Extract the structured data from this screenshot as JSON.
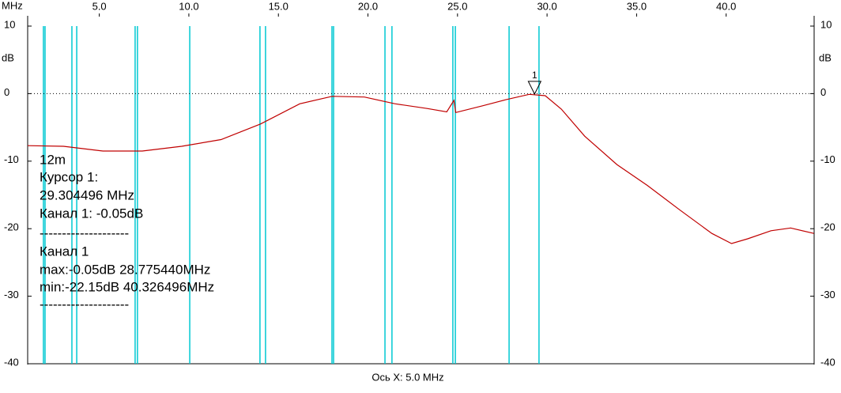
{
  "chart_data": {
    "type": "line",
    "x_unit": "MHz",
    "y_unit": "dB",
    "xlabel": "Ось X: 5.0 MHz",
    "xlim": [
      1,
      45
    ],
    "ylim": [
      -40,
      10
    ],
    "y2lim": [
      -40,
      10
    ],
    "xticks": [
      {
        "value": 5,
        "label": "5.0"
      },
      {
        "value": 10,
        "label": "10.0"
      },
      {
        "value": 15,
        "label": "15.0"
      },
      {
        "value": 20,
        "label": "20.0"
      },
      {
        "value": 25,
        "label": "25.0"
      },
      {
        "value": 30,
        "label": "30.0"
      },
      {
        "value": 35,
        "label": "35.0"
      },
      {
        "value": 40,
        "label": "40.0"
      }
    ],
    "yticks": [
      10,
      0,
      -10,
      -20,
      -30,
      -40
    ],
    "y2ticks": [
      10,
      0,
      -10,
      -20,
      -30,
      -40
    ],
    "color": "#c00000",
    "marker_color": "#00c8d2",
    "markers": [
      1.88,
      1.97,
      3.47,
      3.74,
      7.0,
      7.13,
      10.05,
      13.97,
      14.28,
      17.99,
      18.08,
      20.95,
      21.34,
      24.74,
      24.88,
      27.88,
      29.55
    ],
    "x": [
      1.0,
      3.0,
      5.2,
      7.4,
      9.6,
      11.8,
      14.0,
      16.2,
      18.0,
      19.8,
      21.5,
      23.3,
      24.4,
      24.8,
      24.9,
      26.4,
      27.7,
      29.0,
      29.9,
      30.8,
      32.1,
      33.9,
      35.6,
      37.4,
      39.2,
      40.3,
      41.2,
      42.5,
      43.6,
      44.9
    ],
    "values": [
      -7.7,
      -7.8,
      -8.5,
      -8.5,
      -7.8,
      -6.8,
      -4.5,
      -1.5,
      -0.4,
      -0.5,
      -1.5,
      -2.2,
      -2.7,
      -1.0,
      -2.8,
      -1.8,
      -0.9,
      -0.1,
      -0.3,
      -2.3,
      -6.3,
      -10.5,
      -13.6,
      -17.2,
      -20.7,
      -22.2,
      -21.5,
      -20.3,
      -19.9,
      -20.7
    ],
    "cursor": {
      "label": "1",
      "x": 29.304496,
      "y": -0.05
    },
    "annotations": [
      "12m",
      "Курсор 1:",
      "29.304496 MHz",
      "Канал 1:  -0.05dB",
      "--------------------",
      "Канал 1",
      "max:-0.05dB 28.775440MHz",
      "min:-22.15dB 40.326496MHz",
      "--------------------"
    ]
  }
}
